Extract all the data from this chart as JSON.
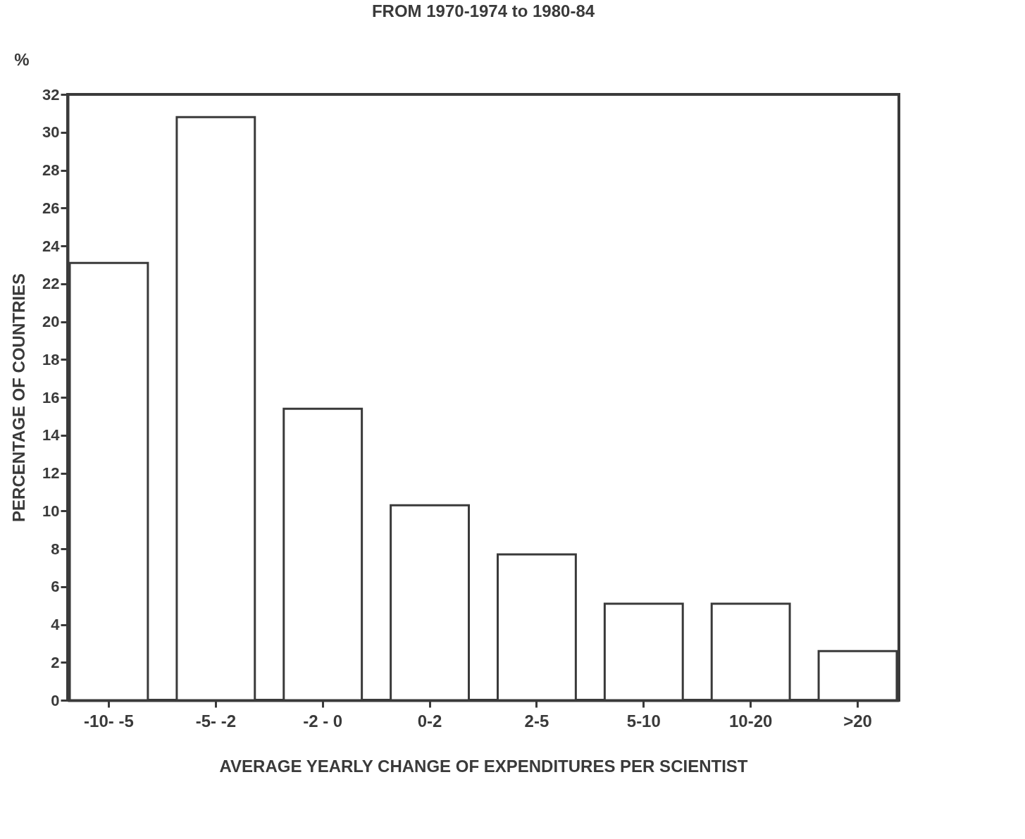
{
  "chart_data": {
    "type": "bar",
    "title": "FROM 1970-1974 to 1980-84",
    "xlabel": "AVERAGE YEARLY CHANGE OF EXPENDITURES PER SCIENTIST",
    "ylabel": "PERCENTAGE OF COUNTRIES",
    "annotations": [
      "%"
    ],
    "categories": [
      "-10- -5",
      "-5- -2",
      "-2 - 0",
      "0-2",
      "2-5",
      "5-10",
      "10-20",
      ">20"
    ],
    "values": [
      23.1,
      30.8,
      15.4,
      10.3,
      7.7,
      5.1,
      5.1,
      2.6
    ],
    "color": "#ffffff",
    "ylim": [
      0,
      32
    ],
    "yticks": [
      0,
      2,
      4,
      6,
      8,
      10,
      12,
      14,
      16,
      18,
      20,
      22,
      24,
      26,
      28,
      30,
      32
    ],
    "grid": false
  }
}
